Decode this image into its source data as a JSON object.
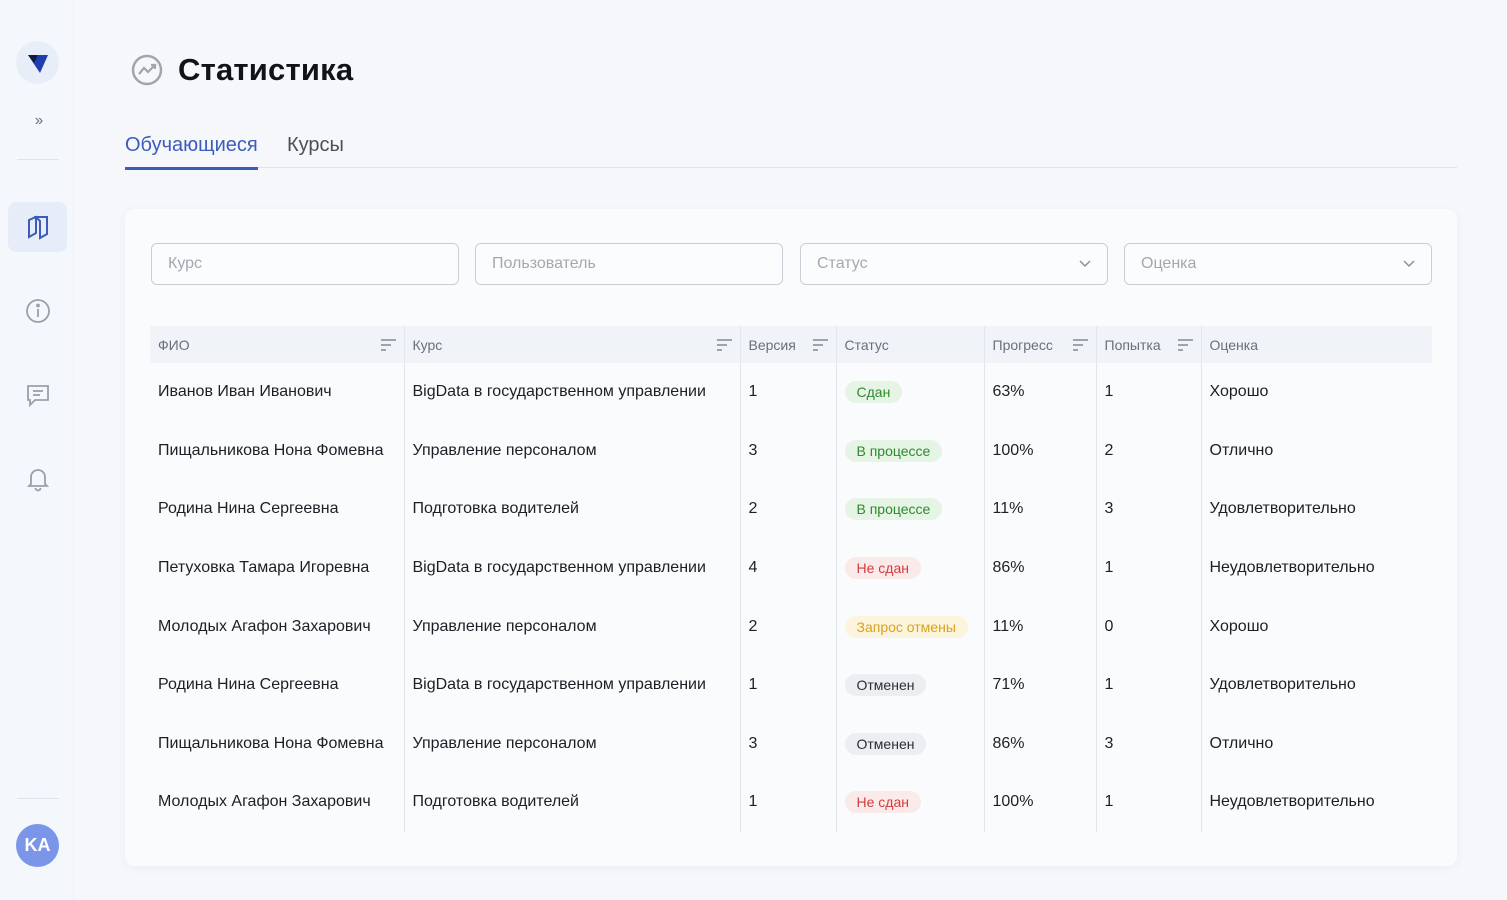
{
  "sidebar": {
    "items": [
      {
        "name": "courses",
        "icon": "book-icon",
        "active": true
      },
      {
        "name": "info",
        "icon": "info-icon",
        "active": false
      },
      {
        "name": "messages",
        "icon": "chat-icon",
        "active": false
      },
      {
        "name": "notifications",
        "icon": "bell-icon",
        "active": false
      }
    ],
    "avatar_initials": "KA"
  },
  "header": {
    "title": "Статистика",
    "icon": "chart-trend-icon"
  },
  "tabs": [
    {
      "label": "Обучающиеся",
      "active": true
    },
    {
      "label": "Курсы",
      "active": false
    }
  ],
  "filters": {
    "course_placeholder": "Курс",
    "user_placeholder": "Пользователь",
    "status_placeholder": "Статус",
    "grade_placeholder": "Оценка"
  },
  "table": {
    "columns": [
      "ФИО",
      "Курс",
      "Версия",
      "Статус",
      "Прогресс",
      "Попытка",
      "Оценка"
    ],
    "rows": [
      {
        "name": "Иванов Иван Иванович",
        "course": "BigData в государственном управлении",
        "version": "1",
        "status": "Сдан",
        "status_kind": "green",
        "progress": "63%",
        "attempt": "1",
        "grade": "Хорошо"
      },
      {
        "name": "Пищальникова Нона Фомевна",
        "course": "Управление персоналом",
        "version": "3",
        "status": "В процессе",
        "status_kind": "green",
        "progress": "100%",
        "attempt": "2",
        "grade": "Отлично"
      },
      {
        "name": "Родина Нина Сергеевна",
        "course": "Подготовка водителей",
        "version": "2",
        "status": "В процессе",
        "status_kind": "green",
        "progress": "11%",
        "attempt": "3",
        "grade": "Удовлетворительно"
      },
      {
        "name": "Петуховка Тамара Игоревна",
        "course": "BigData в государственном управлении",
        "version": "4",
        "status": "Не сдан",
        "status_kind": "red",
        "progress": "86%",
        "attempt": "1",
        "grade": "Неудовлетворительно"
      },
      {
        "name": "Молодых Агафон Захарович",
        "course": "Управление персоналом",
        "version": "2",
        "status": "Запрос отмены",
        "status_kind": "yellow",
        "progress": "11%",
        "attempt": "0",
        "grade": "Хорошо"
      },
      {
        "name": "Родина Нина Сергеевна",
        "course": "BigData в государственном управлении",
        "version": "1",
        "status": "Отменен",
        "status_kind": "gray",
        "progress": "71%",
        "attempt": "1",
        "grade": "Удовлетворительно"
      },
      {
        "name": "Пищальникова Нона Фомевна",
        "course": "Управление персоналом",
        "version": "3",
        "status": "Отменен",
        "status_kind": "gray",
        "progress": "86%",
        "attempt": "3",
        "grade": "Отлично"
      },
      {
        "name": "Молодых Агафон Захарович",
        "course": "Подготовка водителей",
        "version": "1",
        "status": "Не сдан",
        "status_kind": "red",
        "progress": "100%",
        "attempt": "1",
        "grade": "Неудовлетворительно"
      }
    ]
  },
  "colors": {
    "accent": "#3b5bbd",
    "status_green": "#2d8a2d",
    "status_red": "#d33c3c",
    "status_yellow": "#d9a21b",
    "status_gray": "#2a2d33"
  }
}
